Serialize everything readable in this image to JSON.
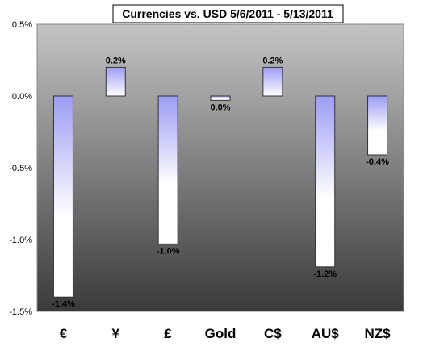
{
  "chart_data": {
    "type": "bar",
    "title": "Currencies vs. USD 5/6/2011 - 5/13/2011",
    "xlabel": "",
    "ylabel": "",
    "categories": [
      "€",
      "¥",
      "£",
      "Gold",
      "C$",
      "AU$",
      "NZ$"
    ],
    "values": [
      -1.4,
      0.2,
      -1.03,
      -0.03,
      0.2,
      -1.19,
      -0.41
    ],
    "data_labels": [
      "-1.4%",
      "0.2%",
      "-1.0%",
      "0.0%",
      "0.2%",
      "-1.2%",
      "-0.4%"
    ],
    "yticks": [
      0.5,
      0.0,
      -0.5,
      -1.0,
      -1.5
    ],
    "ytick_labels": [
      "0.5%",
      "0.0%",
      "-0.5%",
      "-1.0%",
      "-1.5%"
    ],
    "ylim": [
      -1.5,
      0.5
    ],
    "grid": false,
    "legend": "none",
    "colors": {
      "plot_top": "#c4c4c4",
      "plot_bottom": "#3a3a3a",
      "bar_blue": "#9c9cf4",
      "bar_white": "#ffffff",
      "bar_border": "#333333"
    }
  }
}
